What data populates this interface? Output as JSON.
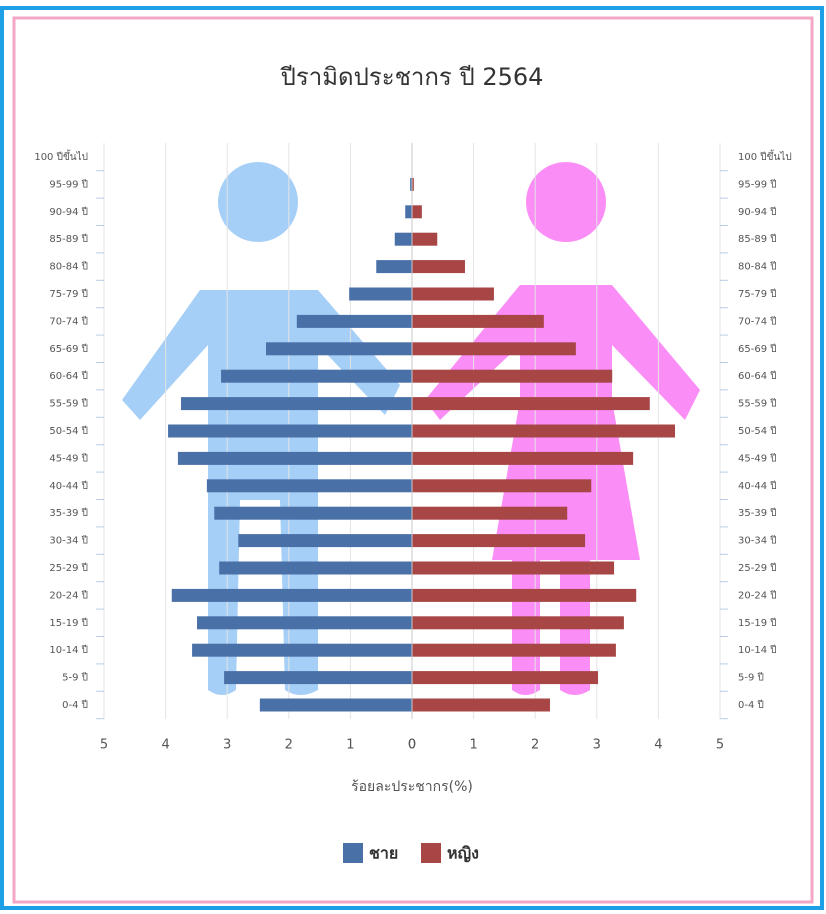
{
  "chart_data": {
    "type": "pyramid",
    "title": "ปีรามิดประชากร ปี 2564",
    "xlabel": "ร้อยละประชากร(%)",
    "categories": [
      "0-4 ปี",
      "5-9 ปี",
      "10-14 ปี",
      "15-19 ปี",
      "20-24 ปี",
      "25-29 ปี",
      "30-34 ปี",
      "35-39 ปี",
      "40-44 ปี",
      "45-49 ปี",
      "50-54 ปี",
      "55-59 ปี",
      "60-64 ปี",
      "65-69 ปี",
      "70-74 ปี",
      "75-79 ปี",
      "80-84 ปี",
      "85-89 ปี",
      "90-94 ปี",
      "95-99 ปี",
      "100 ปีขึ้นไป"
    ],
    "series": [
      {
        "name": "ชาย",
        "color": "#4a70a8",
        "side": "left",
        "values": [
          2.47,
          3.05,
          3.57,
          3.49,
          3.9,
          3.13,
          2.82,
          3.21,
          3.33,
          3.8,
          3.96,
          3.75,
          3.1,
          2.37,
          1.87,
          1.02,
          0.58,
          0.28,
          0.11,
          0.03,
          0
        ]
      },
      {
        "name": "หญิง",
        "color": "#a84646",
        "side": "right",
        "values": [
          2.24,
          3.02,
          3.31,
          3.44,
          3.64,
          3.28,
          2.81,
          2.52,
          2.91,
          3.59,
          4.27,
          3.86,
          3.25,
          2.66,
          2.14,
          1.33,
          0.86,
          0.41,
          0.16,
          0.03,
          0
        ]
      }
    ],
    "xlim": [
      0,
      5
    ],
    "xticks": [
      0,
      1,
      2,
      3,
      4,
      5
    ],
    "grid": true
  }
}
